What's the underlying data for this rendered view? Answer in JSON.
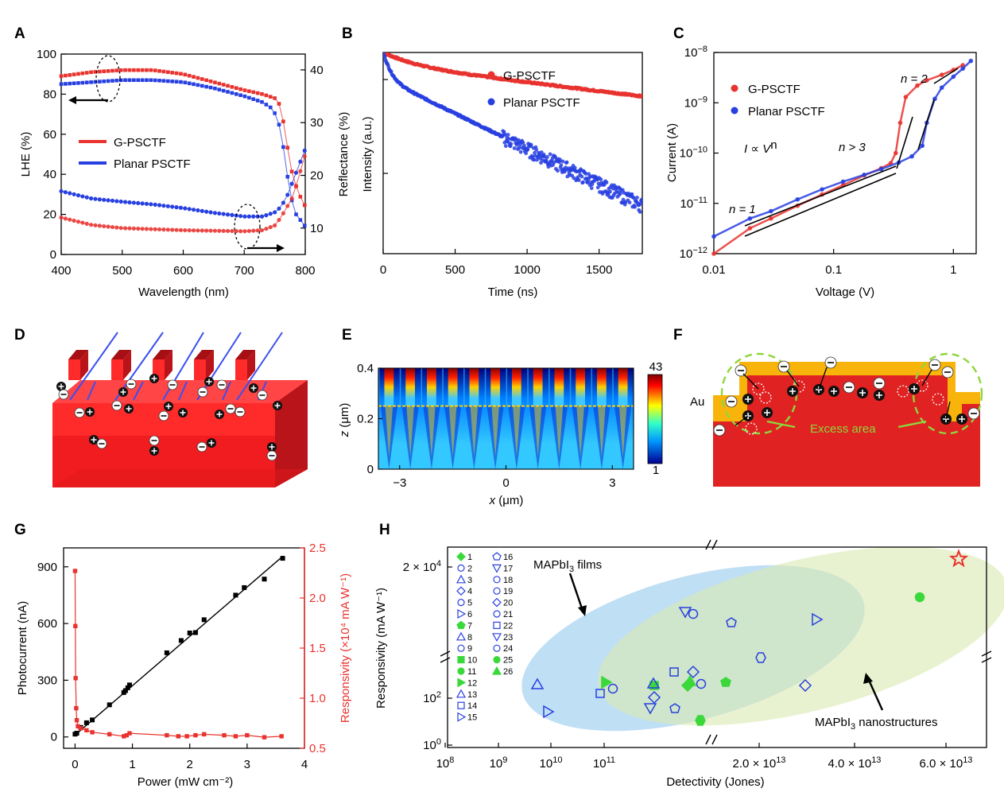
{
  "colors": {
    "red": "#e8332f",
    "blue": "#2840e0",
    "green": "#3ad83a",
    "light_red": "#ff3c3c",
    "gold": "#f8b40a"
  },
  "chart_data": [
    {
      "panel": "A",
      "type": "line",
      "xlabel": "Wavelength (nm)",
      "ylabel": "LHE (%)",
      "y2label": "Reflectance (%)",
      "xlim": [
        400,
        800
      ],
      "ylim": [
        0,
        100
      ],
      "y2lim": [
        5,
        43
      ],
      "xticks": [
        "400",
        "500",
        "600",
        "700",
        "800"
      ],
      "yticks": [
        "0",
        "20",
        "40",
        "60",
        "80",
        "100"
      ],
      "y2ticks": [
        "10",
        "20",
        "30",
        "40"
      ],
      "legend": [
        "G-PSCTF",
        "Planar PSCTF"
      ],
      "series": [
        {
          "name": "G-PSCTF LHE",
          "axis": "left",
          "x": [
            400,
            450,
            500,
            550,
            600,
            650,
            700,
            730,
            750,
            760,
            770,
            780,
            790,
            800
          ],
          "y": [
            89,
            91,
            92,
            92,
            90,
            86,
            82,
            80,
            78,
            74,
            55,
            38,
            30,
            24
          ]
        },
        {
          "name": "Planar PSCTF LHE",
          "axis": "left",
          "x": [
            400,
            450,
            500,
            550,
            600,
            650,
            700,
            730,
            745,
            755,
            765,
            775,
            785,
            800
          ],
          "y": [
            85,
            86,
            87,
            87,
            86,
            83,
            79,
            76,
            73,
            68,
            52,
            30,
            20,
            14
          ]
        },
        {
          "name": "G-PSCTF Reflectance",
          "axis": "right",
          "x": [
            400,
            450,
            500,
            550,
            600,
            650,
            700,
            730,
            750,
            760,
            770,
            780,
            790,
            800
          ],
          "y": [
            12,
            10.6,
            10,
            9.8,
            9.6,
            9.5,
            9.4,
            9.6,
            10.5,
            12,
            14,
            16,
            20,
            24
          ]
        },
        {
          "name": "Planar PSCTF Reflectance",
          "axis": "right",
          "x": [
            400,
            450,
            500,
            550,
            600,
            650,
            700,
            730,
            750,
            760,
            770,
            780,
            790,
            800
          ],
          "y": [
            17,
            15.6,
            15,
            14.5,
            13.8,
            12.9,
            12.2,
            12.2,
            13,
            14,
            16,
            19,
            22,
            25
          ]
        }
      ]
    },
    {
      "panel": "B",
      "type": "scatter",
      "xlabel": "Time (ns)",
      "ylabel": "Intensity (a.u.)",
      "xlim": [
        0,
        1800
      ],
      "xticks": [
        "0",
        "500",
        "1000",
        "1500"
      ],
      "legend": [
        "G-PSCTF",
        "Planar PSCTF"
      ],
      "series": [
        {
          "name": "G-PSCTF",
          "decay_ns": [
            180,
            1600
          ],
          "weights": [
            0.35,
            0.65
          ]
        },
        {
          "name": "Planar PSCTF",
          "decay_ns": [
            40,
            400
          ],
          "weights": [
            0.6,
            0.4
          ]
        }
      ]
    },
    {
      "panel": "C",
      "type": "scatter",
      "xlabel": "Voltage (V)",
      "ylabel": "Current (A)",
      "xscale": "log",
      "yscale": "log",
      "xlim": [
        0.01,
        1.4
      ],
      "ylim": [
        1e-12,
        1e-08
      ],
      "xticks": [
        "0.01",
        "0.1",
        "1"
      ],
      "yticks_base": "10",
      "yticks_exp": [
        "−12",
        "−11",
        "−10",
        "−9",
        "−8"
      ],
      "legend": [
        "G-PSCTF",
        "Planar PSCTF"
      ],
      "annotations": [
        "n = 1",
        "n > 3",
        "n = 2"
      ],
      "formula": {
        "lhs": "I",
        "rel": " ∝ ",
        "var": "V",
        "exp": "n"
      },
      "series": [
        {
          "name": "G-PSCTF",
          "x": [
            0.01,
            0.02,
            0.03,
            0.05,
            0.08,
            0.12,
            0.18,
            0.25,
            0.3,
            0.33,
            0.36,
            0.4,
            0.5,
            0.6,
            0.8,
            1.0,
            1.2
          ],
          "y": [
            1e-12,
            3.2e-12,
            5e-12,
            9e-12,
            1.5e-11,
            2.3e-11,
            3.6e-11,
            5e-11,
            6.3e-11,
            1e-10,
            4e-10,
            1.3e-09,
            2.2e-09,
            2.8e-09,
            3.6e-09,
            4.5e-09,
            5.6e-09
          ]
        },
        {
          "name": "Planar PSCTF",
          "x": [
            0.01,
            0.02,
            0.03,
            0.05,
            0.08,
            0.12,
            0.18,
            0.25,
            0.35,
            0.45,
            0.55,
            0.6,
            0.7,
            0.8,
            1.0,
            1.2,
            1.4
          ],
          "y": [
            2.2e-12,
            5e-12,
            7e-12,
            1.2e-11,
            1.9e-11,
            2.7e-11,
            3.7e-11,
            4.8e-11,
            6.5e-11,
            8.6e-11,
            1.4e-10,
            4e-10,
            1.2e-09,
            2e-09,
            3.3e-09,
            4.8e-09,
            6.8e-09
          ]
        }
      ]
    },
    {
      "panel": "E",
      "type": "heatmap",
      "xlabel_var": "x",
      "xlabel_unit": " (μm)",
      "ylabel_var": "z",
      "ylabel_unit": " (μm)",
      "xlim": [
        -3.6,
        3.6
      ],
      "ylim": [
        0,
        0.4
      ],
      "xticks": [
        "−3",
        "0",
        "3"
      ],
      "yticks": [
        "0",
        "0.2",
        "0.4"
      ],
      "colorbar": [
        "43",
        "1"
      ]
    },
    {
      "panel": "G",
      "type": "line",
      "xlabel": "Power (mW cm⁻²)",
      "ylabel": "Photocurrent (nA)",
      "y2label": "Responsivity (×10⁴ mA W⁻¹)",
      "xlim": [
        -0.2,
        4
      ],
      "ylim": [
        -60,
        1000
      ],
      "y2lim": [
        0.5,
        2.5
      ],
      "xticks": [
        "0",
        "1",
        "2",
        "3",
        "4"
      ],
      "yticks": [
        "0",
        "300",
        "600",
        "900"
      ],
      "y2ticks": [
        "0.5",
        "1.0",
        "1.5",
        "2.0",
        "2.5"
      ],
      "series": [
        {
          "name": "Photocurrent",
          "axis": "left",
          "x": [
            0,
            0.03,
            0.1,
            0.2,
            0.3,
            0.6,
            0.85,
            0.88,
            0.92,
            0.95,
            1.6,
            1.85,
            2.0,
            2.1,
            2.25,
            2.8,
            2.95,
            3.3,
            3.62
          ],
          "y": [
            15,
            20,
            50,
            75,
            90,
            170,
            235,
            245,
            260,
            275,
            445,
            510,
            550,
            552,
            620,
            750,
            790,
            835,
            945
          ]
        },
        {
          "name": "Fit",
          "axis": "left",
          "x": [
            0,
            3.62
          ],
          "y": [
            10,
            955
          ]
        },
        {
          "name": "Responsivity",
          "axis": "right",
          "x": [
            0,
            0.005,
            0.01,
            0.02,
            0.03,
            0.05,
            0.1,
            0.2,
            0.3,
            0.6,
            0.85,
            0.9,
            0.95,
            1.6,
            1.8,
            1.95,
            2.1,
            2.25,
            2.6,
            2.8,
            3.0,
            3.3,
            3.6
          ],
          "y": [
            2.27,
            1.72,
            1.2,
            0.9,
            0.78,
            0.72,
            0.7,
            0.68,
            0.66,
            0.64,
            0.62,
            0.63,
            0.65,
            0.63,
            0.62,
            0.62,
            0.63,
            0.64,
            0.63,
            0.62,
            0.63,
            0.61,
            0.62
          ]
        }
      ]
    },
    {
      "panel": "H",
      "type": "scatter",
      "xlabel": "Detectivity (Jones)",
      "ylabel": "Responsivity (mA W⁻¹)",
      "xticks_log": {
        "base": "10",
        "exps": [
          "8",
          "9",
          "10",
          "11"
        ]
      },
      "xticks_lin": [
        {
          "mant": "2.0 × 10",
          "exp": "13"
        },
        {
          "mant": "4.0 × 10",
          "exp": "13"
        },
        {
          "mant": "6.0 × 10",
          "exp": "13"
        }
      ],
      "yticks": [
        {
          "base": "10",
          "exp": "0"
        },
        {
          "base": "10",
          "exp": "2"
        },
        {
          "base": "2 × 10",
          "exp": "4"
        }
      ],
      "annotations": [
        "MAPbI",
        "3",
        " films",
        "MAPbI",
        "3",
        " nanostructures"
      ],
      "legend_numbers": [
        "1",
        "2",
        "3",
        "4",
        "5",
        "6",
        "7",
        "8",
        "9",
        "10",
        "11",
        "12",
        "13",
        "14",
        "15",
        "16",
        "17",
        "18",
        "19",
        "20",
        "21",
        "22",
        "23",
        "24",
        "25",
        "26"
      ]
    }
  ]
}
